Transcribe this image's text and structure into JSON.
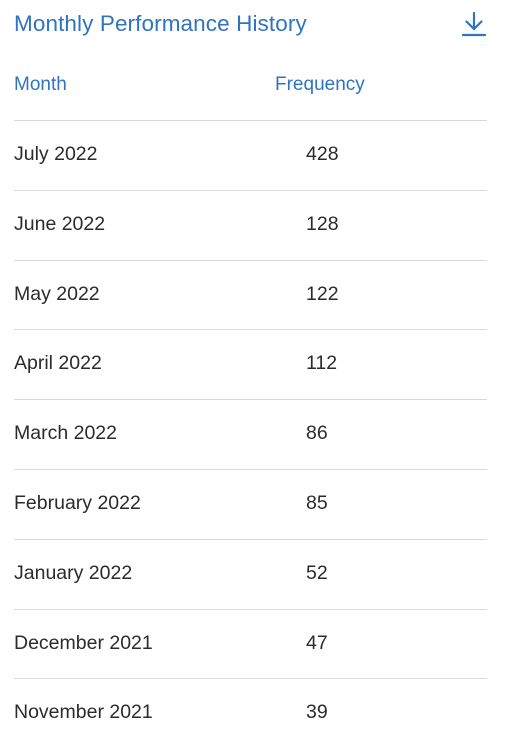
{
  "header": {
    "title": "Monthly Performance History",
    "download_icon": "download-icon",
    "accent_color": "#2f74c0"
  },
  "table": {
    "columns": [
      "Month",
      "Frequency"
    ],
    "rows": [
      {
        "month": "July 2022",
        "frequency": "428"
      },
      {
        "month": "June 2022",
        "frequency": "128"
      },
      {
        "month": "May 2022",
        "frequency": "122"
      },
      {
        "month": "April 2022",
        "frequency": "112"
      },
      {
        "month": "March 2022",
        "frequency": "86"
      },
      {
        "month": "February 2022",
        "frequency": "85"
      },
      {
        "month": "January 2022",
        "frequency": "52"
      },
      {
        "month": "December 2021",
        "frequency": "47"
      },
      {
        "month": "November 2021",
        "frequency": "39"
      }
    ]
  }
}
